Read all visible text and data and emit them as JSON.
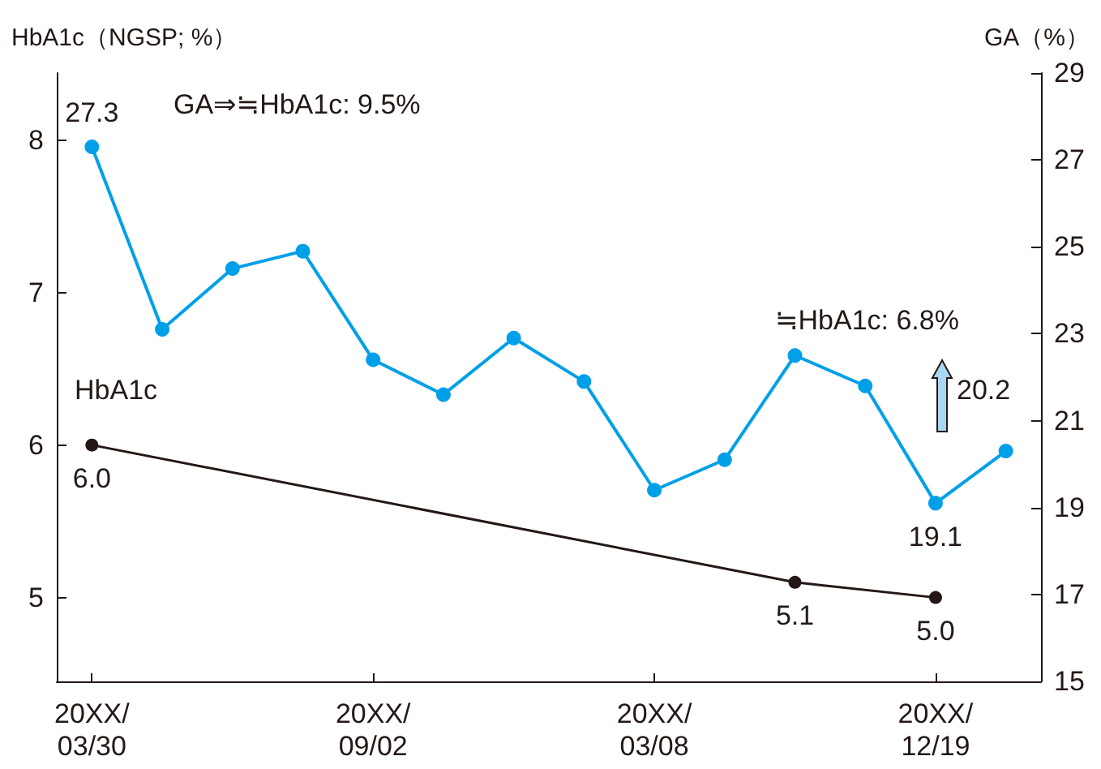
{
  "chart_data": {
    "type": "line",
    "ylabel": "HbA1c（NGSP; %）",
    "y2label": "GA（%）",
    "categories": [
      "20XX/\n03/30",
      null,
      null,
      null,
      "20XX/\n09/02",
      null,
      null,
      null,
      "20XX/\n03/08",
      null,
      null,
      null,
      "20XX/\n12/19",
      null
    ],
    "series": [
      {
        "name": "HbA1c",
        "color": "#231815",
        "values": [
          6.0,
          null,
          null,
          null,
          null,
          null,
          null,
          null,
          null,
          null,
          5.1,
          null,
          5.0,
          null
        ],
        "value_labels": [
          "6.0",
          null,
          null,
          null,
          null,
          null,
          null,
          null,
          null,
          null,
          "5.1",
          null,
          "5.0",
          null
        ]
      },
      {
        "color": "#00a0e9",
        "axis": "y2",
        "values": [
          27.3,
          23.1,
          24.5,
          24.9,
          22.4,
          21.6,
          22.9,
          21.9,
          19.4,
          20.1,
          22.5,
          21.8,
          19.1,
          20.3
        ],
        "value_labels": [
          "27.3",
          null,
          null,
          null,
          null,
          null,
          null,
          null,
          null,
          null,
          null,
          null,
          "19.1",
          null
        ]
      }
    ],
    "ylim": [
      4.45,
      8.44
    ],
    "yticks": [
      5,
      6,
      7,
      8
    ],
    "y2lim": [
      15,
      29
    ],
    "y2ticks": [
      15,
      17,
      19,
      21,
      23,
      25,
      27,
      29
    ],
    "annotations": [
      "GA⇒≒HbA1c: 9.5%",
      "≒HbA1c: 6.8%",
      "20.2"
    ],
    "marker": "circle",
    "line_style": "solid",
    "grid": false,
    "legend": false
  }
}
